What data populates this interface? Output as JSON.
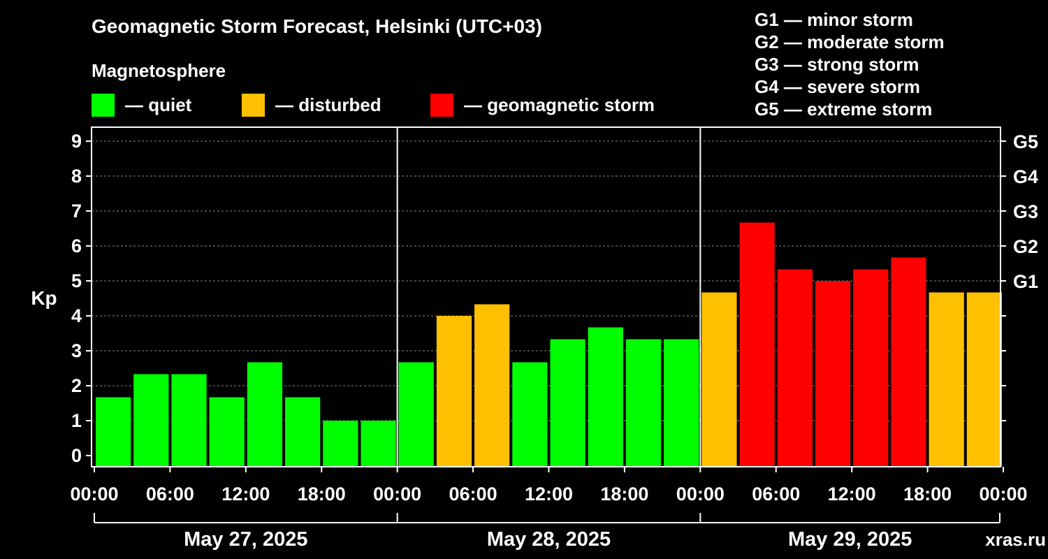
{
  "chart_data": {
    "type": "bar",
    "title": "Geomagnetic Storm Forecast, Helsinki (UTC+03)",
    "ylabel": "Kp",
    "ylim": [
      0,
      9.4
    ],
    "yticks": [
      0,
      1,
      2,
      3,
      4,
      5,
      6,
      7,
      8,
      9
    ],
    "right_ticks": [
      {
        "kp": 5,
        "label": "G1"
      },
      {
        "kp": 6,
        "label": "G2"
      },
      {
        "kp": 7,
        "label": "G3"
      },
      {
        "kp": 8,
        "label": "G4"
      },
      {
        "kp": 9,
        "label": "G5"
      }
    ],
    "grid": "dashed horizontal",
    "xtick_labels": [
      "00:00",
      "06:00",
      "12:00",
      "18:00",
      "00:00",
      "06:00",
      "12:00",
      "18:00",
      "00:00",
      "06:00",
      "12:00",
      "18:00",
      "00:00"
    ],
    "days": [
      "May 27, 2025",
      "May 28, 2025",
      "May 29, 2025"
    ],
    "values": [
      1.67,
      2.33,
      2.33,
      1.67,
      2.67,
      1.67,
      1.0,
      1.0,
      2.67,
      4.0,
      4.33,
      2.67,
      3.33,
      3.67,
      3.33,
      3.33,
      4.67,
      6.67,
      5.33,
      5.0,
      5.33,
      5.67,
      4.67,
      4.67
    ],
    "colors": {
      "quiet": "#00ff00",
      "disturbed": "#ffc000",
      "storm": "#ff0000"
    }
  },
  "legend": {
    "heading": "Magnetosphere",
    "quiet": "— quiet",
    "disturbed": "— disturbed",
    "storm": "— geomagnetic storm"
  },
  "storm_scale": [
    "G1 — minor storm",
    "G2 — moderate storm",
    "G3 — strong storm",
    "G4 — severe storm",
    "G5 — extreme storm"
  ],
  "watermark": "xras.ru"
}
